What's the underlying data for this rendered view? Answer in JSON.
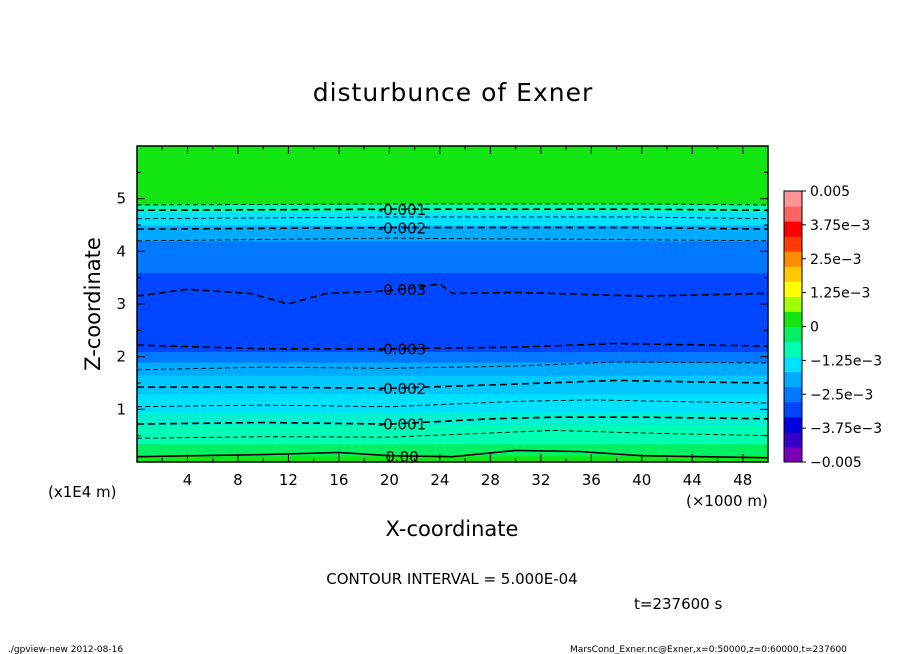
{
  "chart_data": {
    "type": "heatmap",
    "title": "disturbunce of Exner",
    "xlabel": "X-coordinate",
    "ylabel": "Z-coordinate",
    "x_unit": "(×1000 m)",
    "y_unit": "(x1E4 m)",
    "xlim": [
      0,
      50
    ],
    "ylim": [
      0,
      6
    ],
    "x_ticks": [
      4,
      8,
      12,
      16,
      20,
      24,
      28,
      32,
      36,
      40,
      44,
      48
    ],
    "y_ticks": [
      1,
      2,
      3,
      4,
      5
    ],
    "colorbar": {
      "range": [
        -0.005,
        0.005
      ],
      "labels": [
        {
          "value": 0.005,
          "text": "0.005"
        },
        {
          "value": 0.00375,
          "text": "3.75e−3"
        },
        {
          "value": 0.0025,
          "text": "2.5e−3"
        },
        {
          "value": 0.00125,
          "text": "1.25e−3"
        },
        {
          "value": 0,
          "text": "0"
        },
        {
          "value": -0.00125,
          "text": "−1.25e−3"
        },
        {
          "value": -0.0025,
          "text": "−2.5e−3"
        },
        {
          "value": -0.00375,
          "text": "−3.75e−3"
        },
        {
          "value": -0.005,
          "text": "−0.005"
        }
      ],
      "colors": [
        "#7a00b8",
        "#3500c8",
        "#0000e0",
        "#0046ff",
        "#0078ff",
        "#00aaff",
        "#00e0ff",
        "#00ffb4",
        "#00f064",
        "#14e614",
        "#a0ff00",
        "#ffff00",
        "#ffc800",
        "#ff8c00",
        "#ff3c00",
        "#ff0000",
        "#ff6464",
        "#ff9696"
      ]
    },
    "bands": [
      {
        "z0": 0.0,
        "z1": 0.12,
        "color": "#14e614"
      },
      {
        "z0": 0.12,
        "z1": 0.35,
        "color": "#00f064"
      },
      {
        "z0": 0.35,
        "z1": 0.7,
        "color": "#00ffb4"
      },
      {
        "z0": 0.7,
        "z1": 0.95,
        "color": "#00f0d2"
      },
      {
        "z0": 0.95,
        "z1": 1.3,
        "color": "#00e0ff"
      },
      {
        "z0": 1.3,
        "z1": 1.65,
        "color": "#00c8ff"
      },
      {
        "z0": 1.65,
        "z1": 1.9,
        "color": "#00aaff"
      },
      {
        "z0": 1.9,
        "z1": 2.1,
        "color": "#0078ff"
      },
      {
        "z0": 2.1,
        "z1": 3.6,
        "color": "#0046ff"
      },
      {
        "z0": 3.6,
        "z1": 4.2,
        "color": "#0078ff"
      },
      {
        "z0": 4.2,
        "z1": 4.5,
        "color": "#00aaff"
      },
      {
        "z0": 4.5,
        "z1": 4.75,
        "color": "#00e0ff"
      },
      {
        "z0": 4.75,
        "z1": 4.9,
        "color": "#00ffb4"
      },
      {
        "z0": 4.9,
        "z1": 6.0,
        "color": "#14e614"
      }
    ],
    "contours": [
      {
        "level": "0.00",
        "dashed": false,
        "label_x": 21.0,
        "points": [
          [
            0,
            0.1
          ],
          [
            10,
            0.14
          ],
          [
            16,
            0.18
          ],
          [
            20,
            0.12
          ],
          [
            25,
            0.1
          ],
          [
            30,
            0.22
          ],
          [
            35,
            0.2
          ],
          [
            40,
            0.12
          ],
          [
            50,
            0.08
          ]
        ]
      },
      {
        "level": "",
        "dashed": true,
        "label_x": null,
        "points": [
          [
            0,
            0.45
          ],
          [
            10,
            0.48
          ],
          [
            20,
            0.47
          ],
          [
            28,
            0.55
          ],
          [
            33,
            0.6
          ],
          [
            40,
            0.55
          ],
          [
            50,
            0.5
          ]
        ]
      },
      {
        "level": "-0.001",
        "dashed": true,
        "label_x": 21.0,
        "points": [
          [
            0,
            0.72
          ],
          [
            10,
            0.75
          ],
          [
            20,
            0.72
          ],
          [
            28,
            0.82
          ],
          [
            33,
            0.85
          ],
          [
            40,
            0.85
          ],
          [
            50,
            0.82
          ]
        ]
      },
      {
        "level": "",
        "dashed": true,
        "label_x": null,
        "points": [
          [
            0,
            1.05
          ],
          [
            10,
            1.08
          ],
          [
            20,
            1.05
          ],
          [
            30,
            1.15
          ],
          [
            36,
            1.18
          ],
          [
            42,
            1.15
          ],
          [
            50,
            1.12
          ]
        ]
      },
      {
        "level": "-0.002",
        "dashed": true,
        "label_x": 21.0,
        "points": [
          [
            0,
            1.42
          ],
          [
            10,
            1.42
          ],
          [
            20,
            1.4
          ],
          [
            30,
            1.48
          ],
          [
            38,
            1.55
          ],
          [
            44,
            1.52
          ],
          [
            50,
            1.5
          ]
        ]
      },
      {
        "level": "",
        "dashed": true,
        "label_x": null,
        "points": [
          [
            0,
            1.75
          ],
          [
            10,
            1.8
          ],
          [
            20,
            1.78
          ],
          [
            30,
            1.82
          ],
          [
            38,
            1.9
          ],
          [
            50,
            1.88
          ]
        ]
      },
      {
        "level": "-0.003",
        "dashed": true,
        "label_x": 21.0,
        "points": [
          [
            0,
            2.22
          ],
          [
            10,
            2.15
          ],
          [
            20,
            2.15
          ],
          [
            30,
            2.18
          ],
          [
            38,
            2.25
          ],
          [
            50,
            2.2
          ]
        ]
      },
      {
        "level": "-0.003",
        "dashed": true,
        "label_x": 21.0,
        "points": [
          [
            0,
            3.15
          ],
          [
            4,
            3.28
          ],
          [
            9,
            3.2
          ],
          [
            12,
            3.0
          ],
          [
            15,
            3.2
          ],
          [
            20,
            3.25
          ],
          [
            24,
            3.38
          ],
          [
            25,
            3.2
          ],
          [
            30,
            3.22
          ],
          [
            40,
            3.15
          ],
          [
            50,
            3.2
          ]
        ]
      },
      {
        "level": "",
        "dashed": true,
        "label_x": null,
        "points": [
          [
            0,
            4.2
          ],
          [
            20,
            4.25
          ],
          [
            40,
            4.22
          ],
          [
            50,
            4.2
          ]
        ]
      },
      {
        "level": "-0.002",
        "dashed": true,
        "label_x": 21.0,
        "points": [
          [
            0,
            4.42
          ],
          [
            20,
            4.45
          ],
          [
            40,
            4.45
          ],
          [
            50,
            4.42
          ]
        ]
      },
      {
        "level": "",
        "dashed": true,
        "label_x": null,
        "points": [
          [
            0,
            4.62
          ],
          [
            20,
            4.65
          ],
          [
            40,
            4.65
          ],
          [
            50,
            4.62
          ]
        ]
      },
      {
        "level": "-0.001",
        "dashed": true,
        "label_x": 21.0,
        "points": [
          [
            0,
            4.78
          ],
          [
            20,
            4.8
          ],
          [
            40,
            4.8
          ],
          [
            50,
            4.78
          ]
        ]
      },
      {
        "level": "",
        "dashed": true,
        "label_x": null,
        "points": [
          [
            0,
            4.88
          ],
          [
            20,
            4.9
          ],
          [
            40,
            4.9
          ],
          [
            50,
            4.88
          ]
        ]
      }
    ]
  },
  "annotations": {
    "contour_interval": "CONTOUR INTERVAL = 5.000E-04",
    "time": "t=237600 s",
    "footer_left": "./gpview-new  2012-08-16",
    "footer_right": "MarsCond_Exner.nc@Exner,x=0:50000,z=0:60000,t=237600"
  }
}
